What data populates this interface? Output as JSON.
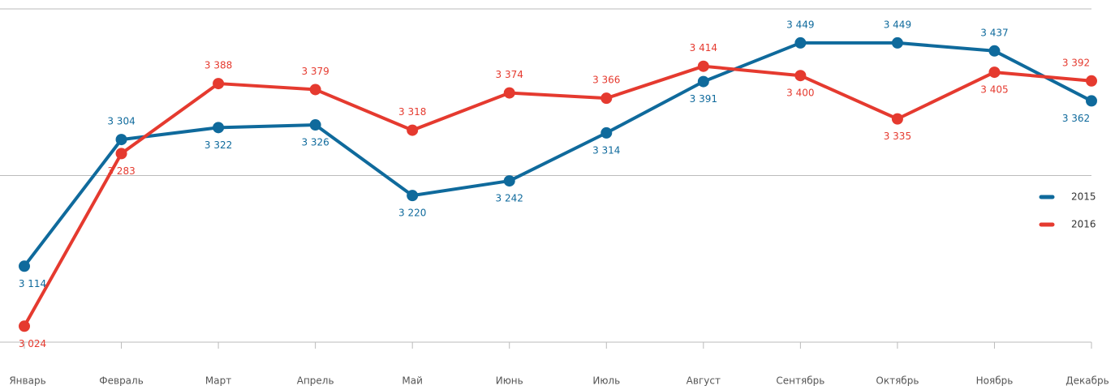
{
  "chart_data": {
    "type": "line",
    "categories": [
      "Январь",
      "Февраль",
      "Март",
      "Апрель",
      "Май",
      "Июнь",
      "Июль",
      "Август",
      "Сентябрь",
      "Октябрь",
      "Ноябрь",
      "Декабрь"
    ],
    "series": [
      {
        "name": "2015",
        "color": "#0f6a9c",
        "values": [
          3114,
          3304,
          3322,
          3326,
          3220,
          3242,
          3314,
          3391,
          3449,
          3449,
          3437,
          3362
        ],
        "value_labels": [
          "3 114",
          "3 304",
          "3 322",
          "3 326",
          "3 220",
          "3 242",
          "3 314",
          "3 391",
          "3 449",
          "3 449",
          "3 437",
          "3 362"
        ]
      },
      {
        "name": "2016",
        "color": "#e53a2f",
        "values": [
          3024,
          3283,
          3388,
          3379,
          3318,
          3374,
          3366,
          3414,
          3400,
          3335,
          3405,
          3392
        ],
        "value_labels": [
          "3 024",
          "3 283",
          "3 388",
          "3 379",
          "3 318",
          "3 374",
          "3 366",
          "3 414",
          "3 400",
          "3 335",
          "3 405",
          "3 392"
        ]
      }
    ],
    "ylim": [
      3000,
      3500
    ],
    "yticks": [
      3000,
      3250,
      3500
    ],
    "grid": true,
    "legend": "right"
  }
}
